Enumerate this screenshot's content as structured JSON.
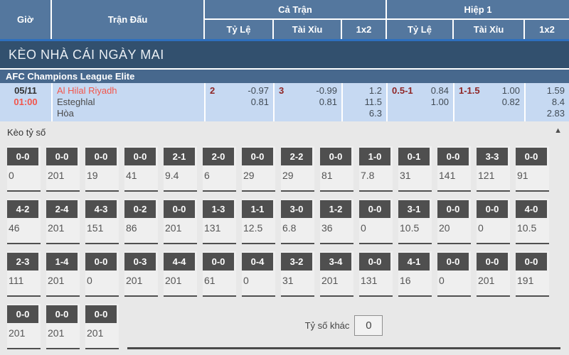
{
  "colors": {
    "header_blue": "#54779e",
    "stripe_blue": "#2e6fbd",
    "banner_navy": "#32506e",
    "league_blue": "#47688d",
    "match_row_blue": "#c6d9f2",
    "team_red": "#f2564c",
    "handicap_dark_red": "#8f2626",
    "score_button_gray": "#4f4f4f"
  },
  "table_header": {
    "time": "Giờ",
    "match": "Trận Đấu",
    "full_match": "Cả Trận",
    "half1": "Hiệp 1",
    "sub": {
      "odds": "Tỷ Lệ",
      "ou": "Tài Xỉu",
      "x12": "1x2"
    }
  },
  "banner": {
    "title": "KÈO NHÀ CÁI NGÀY MAI"
  },
  "league": {
    "name": "AFC Champions League Elite"
  },
  "match": {
    "date": "05/11",
    "time": "01:00",
    "home": "Al Hilal Riyadh",
    "away": "Esteghlal",
    "draw_label": "Hòa",
    "full": {
      "handicap": {
        "line": "2",
        "odds": [
          "-0.97",
          "0.81"
        ]
      },
      "ou": {
        "line": "3",
        "odds": [
          "-0.99",
          "0.81"
        ]
      },
      "x12": [
        "1.2",
        "11.5",
        "6.3"
      ]
    },
    "half": {
      "handicap": {
        "line": "0.5-1",
        "odds": [
          "0.84",
          "1.00"
        ]
      },
      "ou": {
        "line": "1-1.5",
        "odds": [
          "1.00",
          "0.82"
        ]
      },
      "x12": [
        "1.59",
        "8.4",
        "2.83"
      ]
    }
  },
  "score_section": {
    "title": "Kèo tỷ số",
    "other_label": "Tỷ số khác",
    "other_value": "0",
    "rows": [
      [
        {
          "score": "0-0",
          "odds": "0"
        },
        {
          "score": "0-0",
          "odds": "201"
        },
        {
          "score": "0-0",
          "odds": "19"
        },
        {
          "score": "0-0",
          "odds": "41"
        },
        {
          "score": "2-1",
          "odds": "9.4"
        },
        {
          "score": "2-0",
          "odds": "6"
        },
        {
          "score": "0-0",
          "odds": "29"
        },
        {
          "score": "2-2",
          "odds": "29"
        },
        {
          "score": "0-0",
          "odds": "81"
        },
        {
          "score": "1-0",
          "odds": "7.8"
        },
        {
          "score": "0-1",
          "odds": "31"
        },
        {
          "score": "0-0",
          "odds": "141"
        },
        {
          "score": "3-3",
          "odds": "121"
        },
        {
          "score": "0-0",
          "odds": "91"
        }
      ],
      [
        {
          "score": "4-2",
          "odds": "46"
        },
        {
          "score": "2-4",
          "odds": "201"
        },
        {
          "score": "4-3",
          "odds": "151"
        },
        {
          "score": "0-2",
          "odds": "86"
        },
        {
          "score": "0-0",
          "odds": "201"
        },
        {
          "score": "1-3",
          "odds": "131"
        },
        {
          "score": "1-1",
          "odds": "12.5"
        },
        {
          "score": "3-0",
          "odds": "6.8"
        },
        {
          "score": "1-2",
          "odds": "36"
        },
        {
          "score": "0-0",
          "odds": "0"
        },
        {
          "score": "3-1",
          "odds": "10.5"
        },
        {
          "score": "0-0",
          "odds": "20"
        },
        {
          "score": "0-0",
          "odds": "0"
        },
        {
          "score": "4-0",
          "odds": "10.5"
        }
      ],
      [
        {
          "score": "2-3",
          "odds": "111"
        },
        {
          "score": "1-4",
          "odds": "201"
        },
        {
          "score": "0-0",
          "odds": "0"
        },
        {
          "score": "0-3",
          "odds": "201"
        },
        {
          "score": "4-4",
          "odds": "201"
        },
        {
          "score": "0-0",
          "odds": "61"
        },
        {
          "score": "0-4",
          "odds": "0"
        },
        {
          "score": "3-2",
          "odds": "31"
        },
        {
          "score": "3-4",
          "odds": "201"
        },
        {
          "score": "0-0",
          "odds": "131"
        },
        {
          "score": "4-1",
          "odds": "16"
        },
        {
          "score": "0-0",
          "odds": "0"
        },
        {
          "score": "0-0",
          "odds": "201"
        },
        {
          "score": "0-0",
          "odds": "191"
        }
      ],
      [
        {
          "score": "0-0",
          "odds": "201"
        },
        {
          "score": "0-0",
          "odds": "201"
        },
        {
          "score": "0-0",
          "odds": "201"
        }
      ]
    ]
  }
}
